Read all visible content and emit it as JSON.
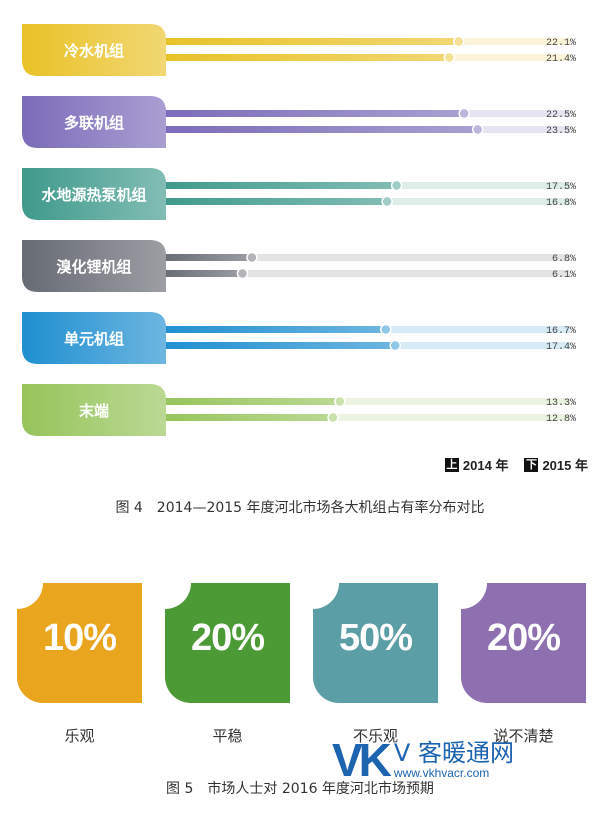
{
  "chart_data": [
    {
      "type": "bar",
      "categories": [
        "冷水机组",
        "多联机组",
        "水地源热泵机组",
        "溴化锂机组",
        "单元机组",
        "末端"
      ],
      "series": [
        {
          "name": "2014 年",
          "values": [
            22.1,
            22.5,
            17.5,
            6.8,
            16.7,
            13.3
          ]
        },
        {
          "name": "2015 年",
          "values": [
            21.4,
            23.5,
            16.8,
            6.1,
            17.4,
            12.8
          ]
        }
      ],
      "value_labels": [
        [
          "22.1%",
          "21.4%"
        ],
        [
          "22.5%",
          "23.5%"
        ],
        [
          "17.5%",
          "16.8%"
        ],
        [
          "6.8%",
          "6.1%"
        ],
        [
          "16.7%",
          "17.4%"
        ],
        [
          "13.3%",
          "12.8%"
        ]
      ],
      "legend": {
        "items": [
          {
            "mark": "上",
            "label": "2014 年"
          },
          {
            "mark": "下",
            "label": "2015 年"
          }
        ],
        "position": "bottom-right"
      },
      "colors": [
        "#e9c227",
        "#7b6bb9",
        "#3f9a8c",
        "#666a73",
        "#1f8fd0",
        "#96c45a"
      ],
      "title": "图 4　2014—2015 年度河北市场各大机组占有率分布对比"
    },
    {
      "type": "table",
      "categories": [
        "乐观",
        "平稳",
        "不乐观",
        "说不清楚"
      ],
      "values": [
        10,
        20,
        50,
        20
      ],
      "value_labels": [
        "10%",
        "20%",
        "50%",
        "20%"
      ],
      "colors": [
        "#e8a51d",
        "#4c9a35",
        "#5b9ea6",
        "#8e6fb0"
      ],
      "title": "图 5　市场人士对 2016 年度河北市场预期"
    }
  ],
  "watermark": {
    "logo": "VK",
    "name": "V 客暖通网",
    "url": "www.vkhvacr.com"
  }
}
